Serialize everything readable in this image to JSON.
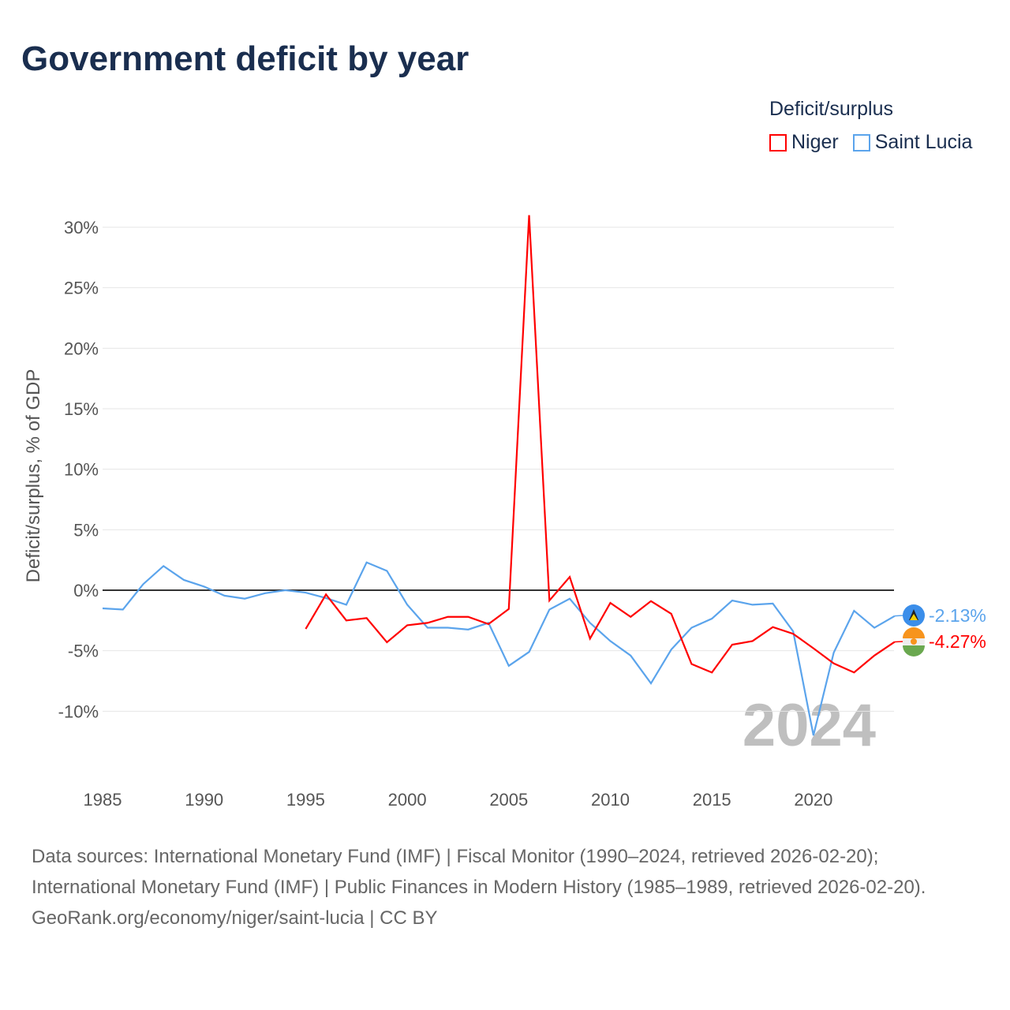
{
  "title": "Government deficit by year",
  "legend": {
    "title": "Deficit/surplus",
    "items": [
      {
        "label": "Niger",
        "color": "#ff0000"
      },
      {
        "label": "Saint Lucia",
        "color": "#5ba4ec"
      }
    ]
  },
  "year_watermark": "2024",
  "footer": {
    "sources": "Data sources: International Monetary Fund (IMF) | Fiscal Monitor (1990–2024, retrieved 2026-02-20); International Monetary Fund (IMF) | Public Finances in Modern History (1985–1989, retrieved 2026-02-20).",
    "credit": "GeoRank.org/economy/niger/saint-lucia | CC BY"
  },
  "chart_data": {
    "type": "line",
    "title": "Government deficit by year",
    "ylabel": "Deficit/surplus, % of GDP",
    "xlabel": "",
    "xlim": [
      1985,
      2024
    ],
    "ylim": [
      -15,
      32
    ],
    "xticks": [
      1985,
      1990,
      1995,
      2000,
      2005,
      2010,
      2015,
      2020
    ],
    "yticks": [
      -10,
      -5,
      0,
      5,
      10,
      15,
      20,
      25,
      30
    ],
    "ytick_labels": [
      "-10%",
      "-5%",
      "0%",
      "5%",
      "10%",
      "15%",
      "20%",
      "25%",
      "30%"
    ],
    "series": [
      {
        "name": "Saint Lucia",
        "color": "#5ba4ec",
        "end_label": "-2.13%",
        "x_start": 1985,
        "values": [
          -1.5,
          -1.6,
          0.5,
          2.0,
          0.85,
          0.3,
          -0.45,
          -0.7,
          -0.25,
          0,
          -0.2,
          -0.65,
          -1.2,
          2.3,
          1.6,
          -1.2,
          -3.1,
          -3.1,
          -3.25,
          -2.7,
          -6.25,
          -5.1,
          -1.6,
          -0.7,
          -2.7,
          -4.2,
          -5.4,
          -7.7,
          -4.9,
          -3.1,
          -2.35,
          -0.85,
          -1.2,
          -1.1,
          -3.4,
          -12.0,
          -5.15,
          -1.7,
          -3.1,
          -2.13
        ]
      },
      {
        "name": "Niger",
        "color": "#ff0000",
        "end_label": "-4.27%",
        "x_start": 1995,
        "values": [
          -3.2,
          -0.35,
          -2.5,
          -2.3,
          -4.3,
          -2.9,
          -2.7,
          -2.2,
          -2.2,
          -2.8,
          -1.55,
          31.0,
          -0.85,
          1.1,
          -4.0,
          -1.05,
          -2.2,
          -0.9,
          -1.95,
          -6.1,
          -6.8,
          -4.5,
          -4.2,
          -3.05,
          -3.6,
          -4.8,
          -6.05,
          -6.8,
          -5.4,
          -4.27
        ]
      }
    ]
  }
}
